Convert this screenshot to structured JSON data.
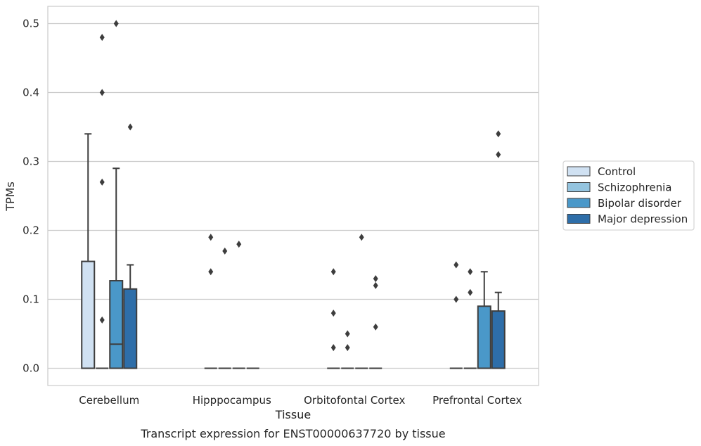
{
  "caption": "Transcript expression for ENST00000637720 by tissue",
  "chart_data": {
    "type": "box",
    "xlabel": "Tissue",
    "ylabel": "TPMs",
    "ylim": [
      -0.025,
      0.525
    ],
    "yticks": [
      0.0,
      0.1,
      0.2,
      0.3,
      0.4,
      0.5
    ],
    "ytick_labels": [
      "0.0",
      "0.1",
      "0.2",
      "0.3",
      "0.4",
      "0.5"
    ],
    "grid": "horizontal",
    "legend_position": "right",
    "categories": [
      "Cerebellum",
      "Hipppocampus",
      "Orbitofontal Cortex",
      "Prefrontal Cortex"
    ],
    "colors": {
      "Control": "#d0e1f2",
      "Schizophrenia": "#94c4df",
      "Bipolar disorder": "#4a98c9",
      "Major depression": "#2e6ea9"
    },
    "series": [
      {
        "name": "Control",
        "boxes": [
          {
            "q1": 0,
            "median": 0,
            "q3": 0.155,
            "whislo": 0,
            "whishi": 0.34,
            "fliers": []
          },
          {
            "q1": 0,
            "median": 0,
            "q3": 0,
            "whislo": 0,
            "whishi": 0,
            "fliers": [
              0.19,
              0.14
            ]
          },
          {
            "q1": 0,
            "median": 0,
            "q3": 0,
            "whislo": 0,
            "whishi": 0,
            "fliers": [
              0.14,
              0.08,
              0.03
            ]
          },
          {
            "q1": 0,
            "median": 0,
            "q3": 0,
            "whislo": 0,
            "whishi": 0,
            "fliers": [
              0.15,
              0.1
            ]
          }
        ]
      },
      {
        "name": "Schizophrenia",
        "boxes": [
          {
            "q1": 0,
            "median": 0,
            "q3": 0,
            "whislo": 0,
            "whishi": 0,
            "fliers": [
              0.48,
              0.4,
              0.27,
              0.07
            ]
          },
          {
            "q1": 0,
            "median": 0,
            "q3": 0,
            "whislo": 0,
            "whishi": 0,
            "fliers": [
              0.17
            ]
          },
          {
            "q1": 0,
            "median": 0,
            "q3": 0,
            "whislo": 0,
            "whishi": 0,
            "fliers": [
              0.05,
              0.03
            ]
          },
          {
            "q1": 0,
            "median": 0,
            "q3": 0,
            "whislo": 0,
            "whishi": 0,
            "fliers": [
              0.14,
              0.11
            ]
          }
        ]
      },
      {
        "name": "Bipolar disorder",
        "boxes": [
          {
            "q1": 0,
            "median": 0.035,
            "q3": 0.127,
            "whislo": 0,
            "whishi": 0.29,
            "fliers": [
              0.5
            ]
          },
          {
            "q1": 0,
            "median": 0,
            "q3": 0,
            "whislo": 0,
            "whishi": 0,
            "fliers": [
              0.18
            ]
          },
          {
            "q1": 0,
            "median": 0,
            "q3": 0,
            "whislo": 0,
            "whishi": 0,
            "fliers": [
              0.19
            ]
          },
          {
            "q1": 0,
            "median": 0,
            "q3": 0.09,
            "whislo": 0,
            "whishi": 0.14,
            "fliers": []
          }
        ]
      },
      {
        "name": "Major depression",
        "boxes": [
          {
            "q1": 0,
            "median": 0,
            "q3": 0.115,
            "whislo": 0,
            "whishi": 0.15,
            "fliers": [
              0.35
            ]
          },
          {
            "q1": 0,
            "median": 0,
            "q3": 0,
            "whislo": 0,
            "whishi": 0,
            "fliers": []
          },
          {
            "q1": 0,
            "median": 0,
            "q3": 0,
            "whislo": 0,
            "whishi": 0,
            "fliers": [
              0.13,
              0.12,
              0.06
            ]
          },
          {
            "q1": 0,
            "median": 0,
            "q3": 0.083,
            "whislo": 0,
            "whishi": 0.11,
            "fliers": [
              0.34,
              0.31
            ]
          }
        ]
      }
    ]
  }
}
